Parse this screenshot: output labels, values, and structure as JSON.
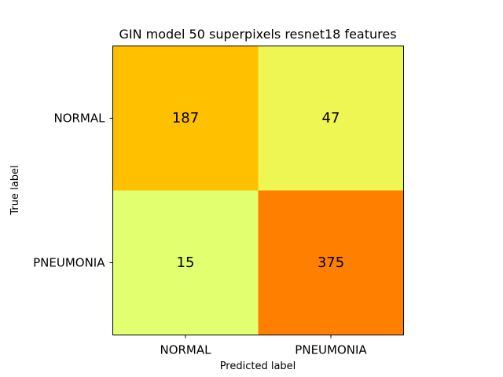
{
  "chart_data": {
    "type": "heatmap",
    "title": "GIN model 50 superpixels resnet18 features",
    "xlabel": "Predicted label",
    "ylabel": "True label",
    "x_categories": [
      "NORMAL",
      "PNEUMONIA"
    ],
    "y_categories": [
      "NORMAL",
      "PNEUMONIA"
    ],
    "matrix": [
      [
        187,
        47
      ],
      [
        15,
        375
      ]
    ],
    "cell_colors": [
      [
        "#ffc000",
        "#edf652"
      ],
      [
        "#e2ff6f",
        "#ff8000"
      ]
    ],
    "grid": false
  }
}
